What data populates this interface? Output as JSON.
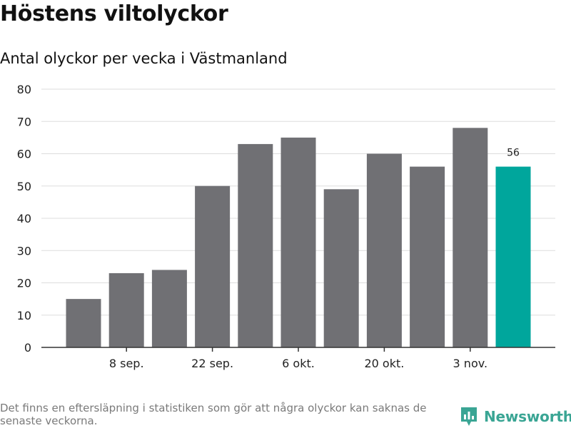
{
  "header": {
    "title": "Höstens viltolyckor",
    "subtitle": "Antal olyckor per vecka i Västmanland"
  },
  "footer": {
    "note": "Det finns en eftersläpning i statistiken som gör att några olyckor kan saknas de senaste veckorna.",
    "brand": "Newsworthy",
    "brand_icon": "bar-chart-logo-icon"
  },
  "colors": {
    "bar": "#707074",
    "highlight": "#00a69c",
    "grid": "#dddddd",
    "axis": "#333333",
    "brand": "#3aa594"
  },
  "chart_data": {
    "type": "bar",
    "title": "Höstens viltolyckor",
    "subtitle": "Antal olyckor per vecka i Västmanland",
    "values": [
      15,
      23,
      24,
      50,
      63,
      65,
      49,
      60,
      56,
      68,
      56
    ],
    "highlight_index": 10,
    "highlight_label": "56",
    "x_tick_labels": [
      {
        "index": 1,
        "label": "8 sep."
      },
      {
        "index": 3,
        "label": "22 sep."
      },
      {
        "index": 5,
        "label": "6 okt."
      },
      {
        "index": 7,
        "label": "20 okt."
      },
      {
        "index": 9,
        "label": "3 nov."
      }
    ],
    "y_ticks": [
      0,
      10,
      20,
      30,
      40,
      50,
      60,
      70,
      80
    ],
    "ylim": [
      0,
      80
    ],
    "xlabel": "",
    "ylabel": "",
    "grid": true
  }
}
